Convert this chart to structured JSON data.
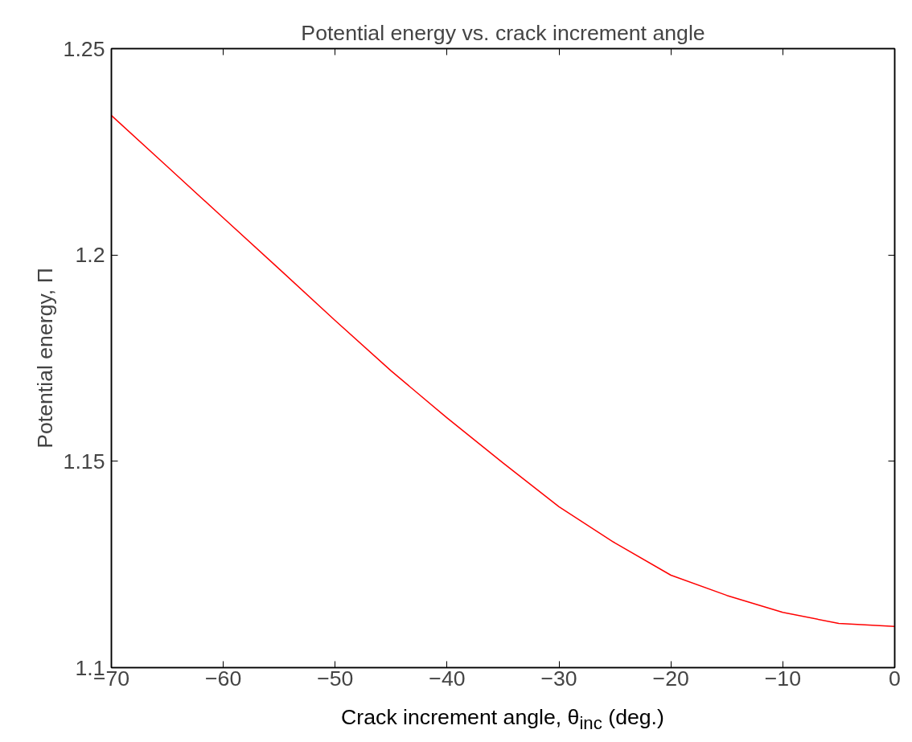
{
  "chart_data": {
    "type": "line",
    "title": "Potential energy vs. crack increment angle",
    "xlabel": "Crack increment angle, θ$_{inc}$ (deg.)",
    "ylabel": "Potential energy, Π",
    "x": [
      -70,
      -65,
      -60,
      -55,
      -50,
      -45,
      -40,
      -35,
      -30,
      -25,
      -20,
      -15,
      -10,
      -5,
      0
    ],
    "series": [
      {
        "color": "#ff0000",
        "values": [
          1.2338,
          1.2214,
          1.209,
          1.1966,
          1.1841,
          1.1719,
          1.1605,
          1.1496,
          1.139,
          1.1302,
          1.1224,
          1.1175,
          1.1134,
          1.1107,
          1.11
        ]
      }
    ],
    "xlim": [
      -70,
      0
    ],
    "xticks": [
      -70,
      -60,
      -50,
      -40,
      -30,
      -20,
      -10,
      0
    ],
    "ylim": [
      1.1,
      1.25
    ],
    "yticks": [
      {
        "value": 1.1,
        "label": "1.1"
      },
      {
        "value": 1.15,
        "label": "1.15"
      },
      {
        "value": 1.2,
        "label": "1.2"
      },
      {
        "value": 1.25,
        "label": "1.25"
      }
    ],
    "grid": false,
    "marker": "none",
    "line_style": "solid"
  }
}
